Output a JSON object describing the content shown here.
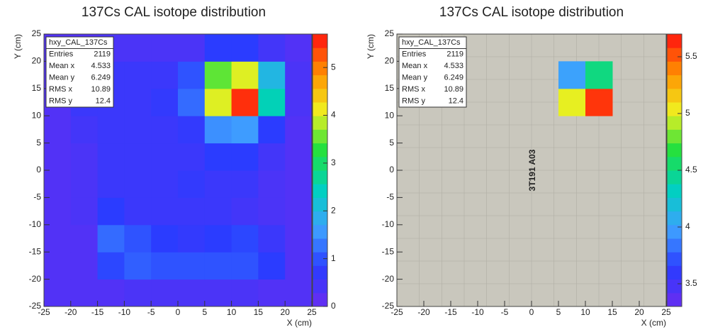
{
  "chart_data": [
    {
      "type": "heatmap",
      "title": "137Cs CAL isotope distribution",
      "xlabel": "X (cm)",
      "ylabel": "Y (cm)",
      "xlim": [
        -25,
        25
      ],
      "xticks": [
        -25,
        -20,
        -15,
        -10,
        -5,
        0,
        5,
        10,
        15,
        20,
        25
      ],
      "ylim": [
        -25,
        25
      ],
      "yticks": [
        -25,
        -20,
        -15,
        -10,
        -5,
        0,
        5,
        10,
        15,
        20,
        25
      ],
      "xbins": [
        -25,
        -20,
        -15,
        -10,
        -5,
        0,
        5,
        10,
        15,
        20,
        25
      ],
      "ybins": [
        -25,
        -20,
        -15,
        -10,
        -5,
        0,
        5,
        10,
        15,
        20,
        25
      ],
      "z": [
        [
          0.3,
          0.3,
          0.3,
          0.4,
          0.4,
          0.4,
          0.4,
          0.4,
          0.3,
          0.3
        ],
        [
          0.3,
          0.3,
          0.9,
          1.1,
          1.0,
          1.0,
          1.0,
          1.0,
          0.8,
          0.3
        ],
        [
          0.3,
          0.3,
          1.2,
          1.0,
          0.8,
          0.7,
          0.8,
          0.9,
          0.6,
          0.3
        ],
        [
          0.3,
          0.4,
          0.8,
          0.6,
          0.6,
          0.6,
          0.6,
          0.5,
          0.4,
          0.3
        ],
        [
          0.3,
          0.4,
          0.6,
          0.6,
          0.6,
          0.7,
          0.6,
          0.6,
          0.4,
          0.3
        ],
        [
          0.3,
          0.4,
          0.6,
          0.6,
          0.6,
          0.6,
          0.8,
          0.8,
          0.5,
          0.3
        ],
        [
          0.3,
          0.5,
          0.6,
          0.6,
          0.6,
          0.7,
          1.5,
          1.6,
          0.8,
          0.3
        ],
        [
          0.3,
          0.6,
          0.6,
          0.6,
          0.7,
          1.2,
          4.0,
          5.5,
          2.5,
          0.4
        ],
        [
          0.3,
          0.5,
          0.6,
          0.6,
          0.6,
          1.0,
          3.5,
          4.0,
          2.0,
          0.4
        ],
        [
          0.3,
          0.3,
          0.4,
          0.4,
          0.4,
          0.4,
          0.8,
          0.8,
          0.5,
          0.3
        ]
      ],
      "zlim": [
        0,
        5.7
      ],
      "zticks": [
        0,
        1,
        2,
        3,
        4,
        5
      ],
      "palette": [
        "#6a2cf0",
        "#2a3cff",
        "#3fa0ff",
        "#00d0c0",
        "#20e040",
        "#f0f020",
        "#ff9000",
        "#ff1010"
      ],
      "stats": {
        "name": "hxy_CAL_137Cs",
        "rows": [
          {
            "label": "Entries",
            "value": 2119
          },
          {
            "label": "Mean x",
            "value": 4.533
          },
          {
            "label": "Mean y",
            "value": 6.249
          },
          {
            "label": "RMS x",
            "value": 10.89
          },
          {
            "label": "RMS y",
            "value": 12.4
          }
        ]
      }
    },
    {
      "type": "heatmap",
      "title": "137Cs CAL isotope distribution",
      "xlabel": "X (cm)",
      "ylabel": "Y (cm)",
      "xlim": [
        -25,
        25
      ],
      "xticks": [
        -25,
        -20,
        -15,
        -10,
        -5,
        0,
        5,
        10,
        15,
        20,
        25
      ],
      "ylim": [
        -25,
        25
      ],
      "yticks": [
        -25,
        -20,
        -15,
        -10,
        -5,
        0,
        5,
        10,
        15,
        20,
        25
      ],
      "xbins": [
        -25,
        -20,
        -15,
        -10,
        -5,
        0,
        5,
        10,
        15,
        20,
        25
      ],
      "ybins": [
        -25,
        -20,
        -15,
        -10,
        -5,
        0,
        5,
        10,
        15,
        20,
        25
      ],
      "z": [
        [
          null,
          null,
          null,
          null,
          null,
          null,
          null,
          null,
          null,
          null
        ],
        [
          null,
          null,
          null,
          null,
          null,
          null,
          null,
          null,
          null,
          null
        ],
        [
          null,
          null,
          null,
          null,
          null,
          null,
          null,
          null,
          null,
          null
        ],
        [
          null,
          null,
          null,
          null,
          null,
          null,
          null,
          null,
          null,
          null
        ],
        [
          null,
          null,
          null,
          null,
          null,
          null,
          null,
          null,
          null,
          null
        ],
        [
          null,
          null,
          null,
          null,
          null,
          null,
          null,
          null,
          null,
          null
        ],
        [
          null,
          null,
          null,
          null,
          null,
          null,
          null,
          null,
          null,
          null
        ],
        [
          null,
          null,
          null,
          null,
          null,
          null,
          5.0,
          5.6,
          null,
          null
        ],
        [
          null,
          null,
          null,
          null,
          null,
          null,
          4.0,
          4.5,
          null,
          null
        ],
        [
          null,
          null,
          null,
          null,
          null,
          null,
          null,
          null,
          null,
          null
        ]
      ],
      "zlim": [
        3.3,
        5.7
      ],
      "zticks": [
        3.5,
        4,
        4.5,
        5,
        5.5
      ],
      "palette": [
        "#6a2cf0",
        "#2a3cff",
        "#3fa0ff",
        "#00d0c0",
        "#20e040",
        "#f0f020",
        "#ff9000",
        "#ff1010"
      ],
      "background": "#c9c7bd",
      "annotation": "3T191 A03",
      "stats": {
        "name": "hxy_CAL_137Cs",
        "rows": [
          {
            "label": "Entries",
            "value": 2119
          },
          {
            "label": "Mean x",
            "value": 4.533
          },
          {
            "label": "Mean y",
            "value": 6.249
          },
          {
            "label": "RMS x",
            "value": 10.89
          },
          {
            "label": "RMS y",
            "value": 12.4
          }
        ]
      }
    }
  ]
}
